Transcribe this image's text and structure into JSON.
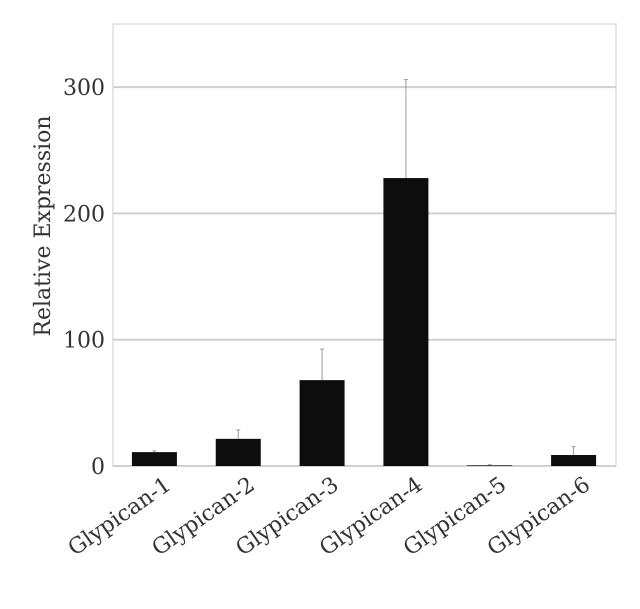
{
  "chart_data": {
    "type": "bar",
    "title": "",
    "xlabel": "",
    "ylabel": "Relative Expression",
    "categories": [
      "Glypican-1",
      "Glypican-2",
      "Glypican-3",
      "Glypican-4",
      "Glypican-5",
      "Glypican-6"
    ],
    "values": [
      11,
      21.5,
      68,
      228,
      0.5,
      8.7
    ],
    "error_upper": [
      12,
      28.6,
      92.6,
      306,
      1,
      15.3
    ],
    "ylim": [
      0,
      350
    ],
    "yticks": [
      0,
      100,
      200,
      300
    ],
    "grid": true,
    "bar_color": "#0d0d0d",
    "grid_color": "#d0d0d0"
  }
}
